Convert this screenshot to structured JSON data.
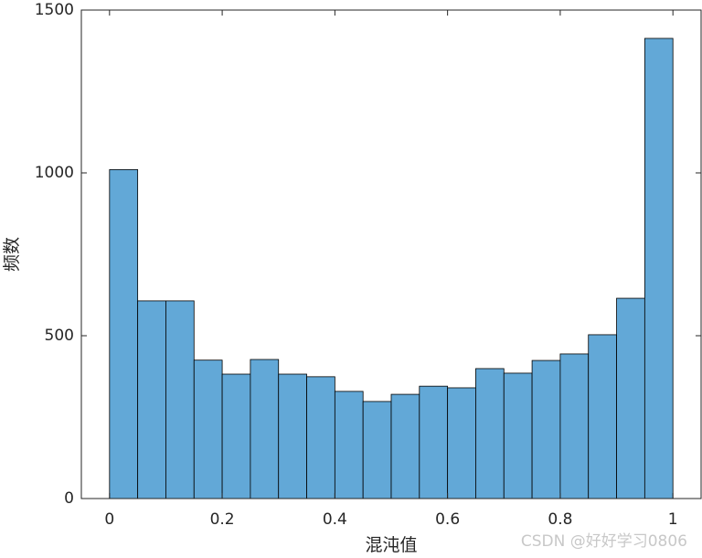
{
  "chart_data": {
    "type": "histogram",
    "xlabel": "混沌值",
    "ylabel": "频数",
    "bins": [
      0,
      0.05,
      0.1,
      0.15,
      0.2,
      0.25,
      0.3,
      0.35,
      0.4,
      0.45,
      0.5,
      0.55,
      0.6,
      0.65,
      0.7,
      0.75,
      0.8,
      0.85,
      0.9,
      0.95,
      1
    ],
    "values": [
      1010,
      607,
      607,
      425,
      382,
      427,
      382,
      374,
      329,
      298,
      320,
      345,
      340,
      399,
      385,
      424,
      444,
      503,
      615,
      1413
    ],
    "color": "#62a8d7",
    "xlim": [
      -0.05,
      1.05
    ],
    "xticks": [
      0,
      0.2,
      0.4,
      0.6,
      0.8,
      1
    ],
    "ylim": [
      0,
      1500
    ],
    "yticks": [
      0,
      500,
      1000,
      1500
    ],
    "watermark": "CSDN @好好学习0806"
  }
}
